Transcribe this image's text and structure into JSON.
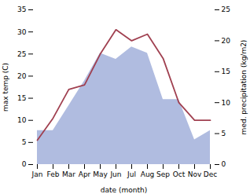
{
  "chart_data": {
    "type": "line",
    "categories": [
      "Jan",
      "Feb",
      "Mar",
      "Apr",
      "May",
      "Jun",
      "Jul",
      "Aug",
      "Sep",
      "Oct",
      "Nov",
      "Dec"
    ],
    "xlabel": "date (month)",
    "ylabel": "max temp (C)",
    "y2label": "med. precipitation (kg/m2)",
    "series": [
      {
        "type": "area",
        "axis": "y2",
        "color": "#b0bce0",
        "values": [
          5.5,
          5.5,
          9.5,
          13.5,
          18.0,
          17.0,
          19.0,
          18.0,
          10.5,
          10.5,
          4.0,
          5.5
        ]
      },
      {
        "type": "line",
        "color": "#a04050",
        "values": [
          5.5,
          10.5,
          17.0,
          18.0,
          25.0,
          30.5,
          28.0,
          29.5,
          24.0,
          14.0,
          10.0,
          10.0
        ]
      }
    ],
    "ylim": [
      0,
      35
    ],
    "yticks": [
      0,
      5,
      10,
      15,
      20,
      25,
      30,
      35
    ],
    "y2lim": [
      0,
      25
    ],
    "y2ticks": [
      0,
      5,
      10,
      15,
      20,
      25
    ]
  }
}
